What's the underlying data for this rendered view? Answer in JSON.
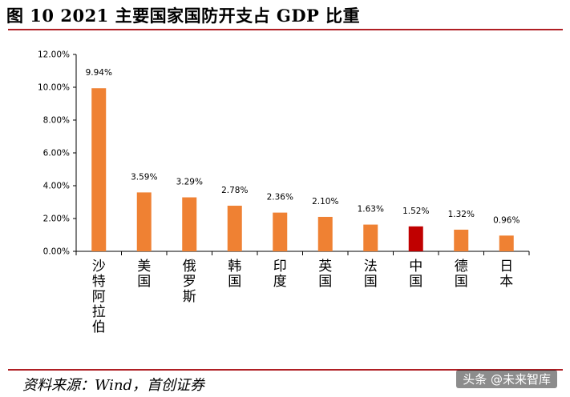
{
  "header": {
    "title": "图 10 2021 主要国家国防开支占 GDP 比重"
  },
  "footer": {
    "source": "资料来源：Wind，首创证券",
    "watermark": "头条 @未来智库"
  },
  "colors": {
    "bar": "#ef8133",
    "highlight": "#c00000",
    "rule": "#b01f24"
  },
  "chart_data": {
    "type": "bar",
    "title": "",
    "xlabel": "",
    "ylabel": "",
    "ylim": [
      0,
      12
    ],
    "grid": false,
    "y_ticks": [
      "0.00%",
      "2.00%",
      "4.00%",
      "6.00%",
      "8.00%",
      "10.00%",
      "12.00%"
    ],
    "categories": [
      "沙特阿拉伯",
      "美国",
      "俄罗斯",
      "韩国",
      "印度",
      "英国",
      "法国",
      "中国",
      "德国",
      "日本"
    ],
    "values": [
      9.94,
      3.59,
      3.29,
      2.78,
      2.36,
      2.1,
      1.63,
      1.52,
      1.32,
      0.96
    ],
    "value_labels": [
      "9.94%",
      "3.59%",
      "3.29%",
      "2.78%",
      "2.36%",
      "2.10%",
      "1.63%",
      "1.52%",
      "1.32%",
      "0.96%"
    ],
    "highlight_category": "中国"
  }
}
